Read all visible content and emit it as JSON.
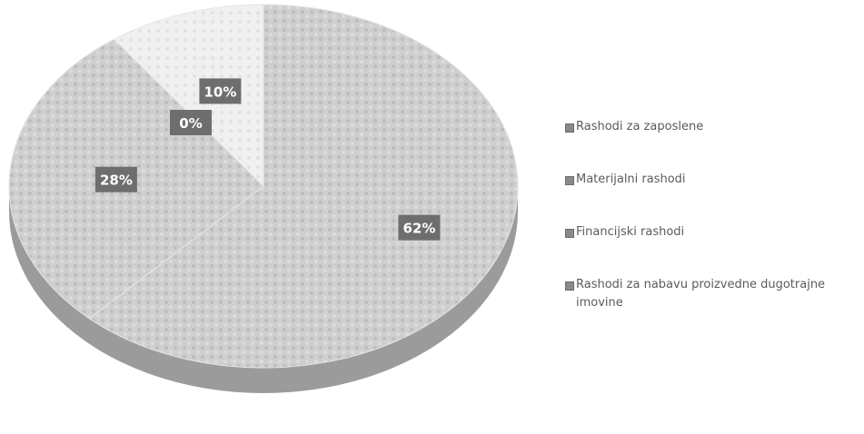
{
  "chart_data": {
    "type": "pie",
    "categories": [
      "Rashodi za zaposlene",
      "Materijalni rashodi",
      "Financijski rashodi",
      "Rashodi za nabavu proizvedne dugotrajne imovine"
    ],
    "values": [
      62,
      28,
      0,
      10
    ],
    "data_labels": [
      "62%",
      "28%",
      "0%",
      "10%"
    ],
    "legend": "right",
    "title": ""
  },
  "colors": {
    "slice_fill": "#c9c9c9",
    "slice_light": "#f1f1f1",
    "side_dark": "#8a8a8a",
    "label_box": "#6e6e6e",
    "label_text": "#ffffff",
    "legend_text": "#5b5b5b"
  }
}
